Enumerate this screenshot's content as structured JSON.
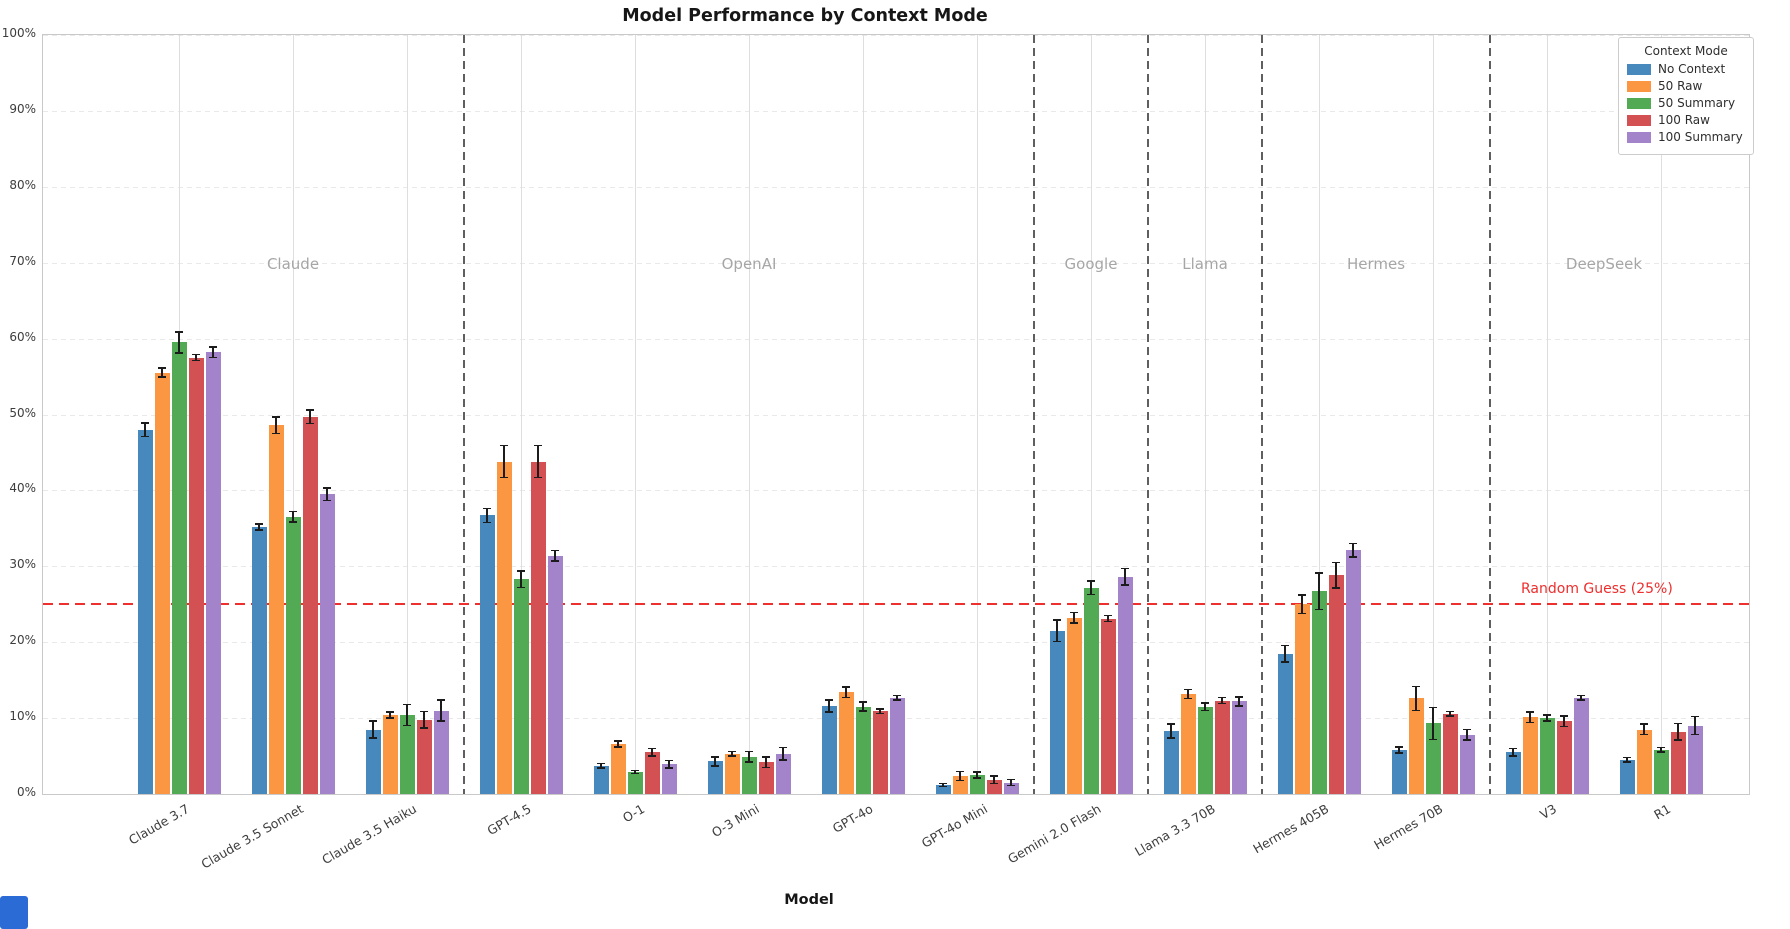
{
  "title": "Model Performance by Context Mode",
  "x_axis_title": "Model",
  "y_axis": {
    "tick_labels": [
      "0%",
      "10%",
      "20%",
      "30%",
      "40%",
      "50%",
      "60%",
      "70%",
      "80%",
      "90%",
      "100%"
    ],
    "min": 0,
    "max": 100
  },
  "legend": {
    "title": "Context Mode",
    "entries": [
      {
        "label": "No Context",
        "color": "#4788bd"
      },
      {
        "label": "50 Raw",
        "color": "#fb9642"
      },
      {
        "label": "50 Summary",
        "color": "#53aa55"
      },
      {
        "label": "100 Raw",
        "color": "#d35152"
      },
      {
        "label": "100 Summary",
        "color": "#a384ca"
      }
    ]
  },
  "annotation": {
    "random_guess_label": "Random Guess (25%)",
    "random_guess_value": 25,
    "color": "#ed2f2d"
  },
  "vendor_groups": [
    {
      "label": "Claude",
      "models": [
        "Claude 3.7",
        "Claude 3.5 Sonnet",
        "Claude 3.5 Haiku"
      ]
    },
    {
      "label": "OpenAI",
      "models": [
        "GPT-4.5",
        "O-1",
        "O-3 Mini",
        "GPT-4o",
        "GPT-4o Mini"
      ]
    },
    {
      "label": "Google",
      "models": [
        "Gemini 2.0 Flash"
      ]
    },
    {
      "label": "Llama",
      "models": [
        "Llama 3.3 70B"
      ]
    },
    {
      "label": "Hermes",
      "models": [
        "Hermes 405B",
        "Hermes 70B"
      ]
    },
    {
      "label": "DeepSeek",
      "models": [
        "V3",
        "R1"
      ]
    }
  ],
  "chart_data": {
    "type": "bar",
    "title": "Model Performance by Context Mode",
    "xlabel": "Model",
    "ylabel": "",
    "ylim": [
      0,
      100
    ],
    "grid": true,
    "legend_position": "upper right",
    "categories": [
      "Claude 3.7",
      "Claude 3.5 Sonnet",
      "Claude 3.5 Haiku",
      "GPT-4.5",
      "O-1",
      "O-3 Mini",
      "GPT-4o",
      "GPT-4o Mini",
      "Gemini 2.0 Flash",
      "Llama 3.3 70B",
      "Hermes 405B",
      "Hermes 70B",
      "V3",
      "R1"
    ],
    "series": [
      {
        "name": "No Context",
        "color": "#4788bd",
        "values": [
          48.0,
          35.2,
          8.5,
          36.7,
          3.7,
          4.3,
          11.6,
          1.2,
          21.5,
          8.3,
          18.5,
          5.8,
          5.5,
          4.5
        ],
        "errors": [
          1.0,
          0.5,
          1.2,
          1.0,
          0.4,
          0.7,
          0.9,
          0.3,
          1.5,
          1.0,
          1.2,
          0.5,
          0.6,
          0.4
        ]
      },
      {
        "name": "50 Raw",
        "color": "#fb9642",
        "values": [
          55.5,
          48.6,
          10.4,
          43.8,
          6.6,
          5.3,
          13.4,
          2.4,
          23.2,
          13.2,
          25.0,
          12.6,
          10.1,
          8.5
        ],
        "errors": [
          0.7,
          1.2,
          0.5,
          2.2,
          0.5,
          0.4,
          0.8,
          0.7,
          0.8,
          0.7,
          1.3,
          1.7,
          0.8,
          0.8
        ]
      },
      {
        "name": "50 Summary",
        "color": "#53aa55",
        "values": [
          59.5,
          36.5,
          10.4,
          28.3,
          2.9,
          4.9,
          11.5,
          2.5,
          27.2,
          11.5,
          26.7,
          9.3,
          10.0,
          5.8
        ],
        "errors": [
          1.5,
          0.8,
          1.5,
          1.2,
          0.3,
          0.8,
          0.7,
          0.5,
          1.0,
          0.6,
          2.5,
          2.2,
          0.5,
          0.4
        ]
      },
      {
        "name": "100 Raw",
        "color": "#d35152",
        "values": [
          57.5,
          49.7,
          9.8,
          43.8,
          5.5,
          4.2,
          10.9,
          1.9,
          23.1,
          12.3,
          28.8,
          10.6,
          9.6,
          8.2
        ],
        "errors": [
          0.5,
          1.0,
          1.2,
          2.2,
          0.6,
          0.8,
          0.4,
          0.6,
          0.5,
          0.5,
          1.8,
          0.4,
          0.8,
          1.2
        ]
      },
      {
        "name": "100 Summary",
        "color": "#a384ca",
        "values": [
          58.2,
          39.5,
          11.0,
          31.4,
          3.9,
          5.3,
          12.7,
          1.5,
          28.6,
          12.2,
          32.1,
          7.8,
          12.7,
          9.0
        ],
        "errors": [
          0.8,
          0.9,
          1.5,
          0.8,
          0.6,
          0.9,
          0.4,
          0.5,
          1.2,
          0.7,
          1.0,
          0.8,
          0.4,
          1.3
        ]
      }
    ]
  }
}
